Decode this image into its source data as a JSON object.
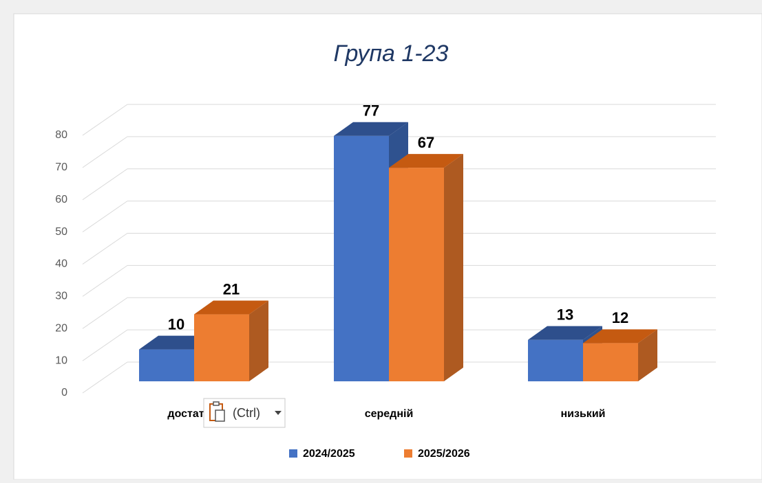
{
  "chart_data": {
    "type": "bar3d",
    "title": "Група 1-23",
    "categories": [
      "достатній",
      "середній",
      "низький"
    ],
    "series": [
      {
        "name": "2024/2025",
        "color": "#4472c4",
        "values": [
          10,
          77,
          13
        ]
      },
      {
        "name": "2025/2026",
        "color": "#ed7d31",
        "values": [
          21,
          67,
          12
        ]
      }
    ],
    "ylim": [
      0,
      80
    ],
    "yticks": [
      0,
      10,
      20,
      30,
      40,
      50,
      60,
      70,
      80
    ],
    "grid": true,
    "legend": "bottom"
  },
  "paste_options": {
    "label": "(Ctrl)"
  }
}
